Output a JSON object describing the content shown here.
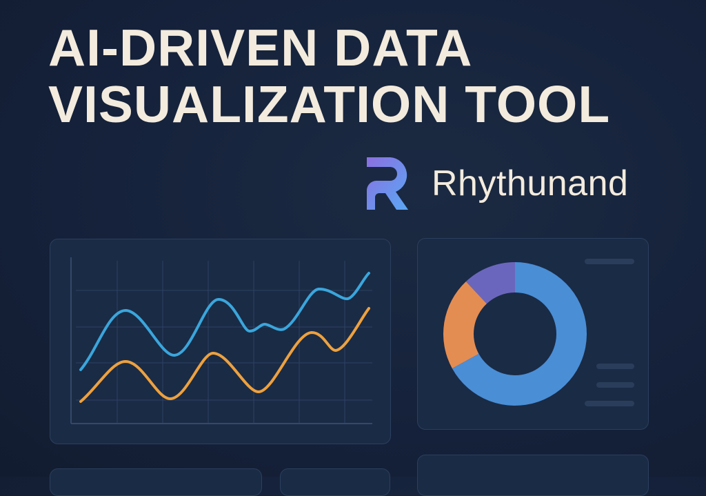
{
  "title": {
    "line1": "AI-DRIVEN DATA",
    "line2": "VISUALIZATION TOOL"
  },
  "brand": {
    "name": "Rhythunand",
    "logo_icon": "r-logo-icon",
    "logo_gradient": [
      "#8b6fe0",
      "#5aa8f5"
    ]
  },
  "colors": {
    "background": "#15213a",
    "card": "#1a2b45",
    "text": "#f3ebdd",
    "line_blue": "#3aa6dc",
    "line_orange": "#eea13e",
    "donut_blue": "#4a8ed6",
    "donut_orange": "#e48d52",
    "donut_purple": "#6b66bd"
  },
  "donut_shares": {
    "purple": 12,
    "orange": 21,
    "blue": 67
  }
}
